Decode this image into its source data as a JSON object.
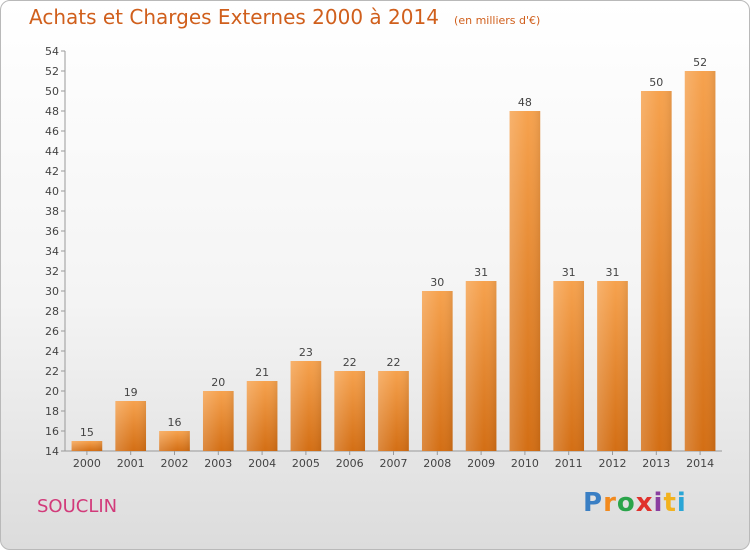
{
  "title": "Achats et Charges Externes 2000 à 2014",
  "unit": "(en milliers d'€)",
  "commune": "SOUCLIN",
  "logo": {
    "letters": [
      "P",
      "r",
      "o",
      "x",
      "i",
      "t",
      "i"
    ],
    "colors": [
      "#3a7fc4",
      "#f28a1e",
      "#2aa44a",
      "#e0312c",
      "#8a3fa0",
      "#f2b21e",
      "#2aa6d6"
    ]
  },
  "bar_color": "#f0923a",
  "chart_data": {
    "type": "bar",
    "categories": [
      "2000",
      "2001",
      "2002",
      "2003",
      "2004",
      "2005",
      "2006",
      "2007",
      "2008",
      "2009",
      "2010",
      "2011",
      "2012",
      "2013",
      "2014"
    ],
    "values": [
      15,
      19,
      16,
      20,
      21,
      23,
      22,
      22,
      30,
      31,
      48,
      31,
      31,
      50,
      52
    ],
    "title": "Achats et Charges Externes 2000 à 2014",
    "ylim": [
      14,
      54
    ],
    "yticks": [
      14,
      16,
      18,
      20,
      22,
      24,
      26,
      28,
      30,
      32,
      34,
      36,
      38,
      40,
      42,
      44,
      46,
      48,
      50,
      52,
      54
    ],
    "grid": false,
    "data_labels": true
  }
}
